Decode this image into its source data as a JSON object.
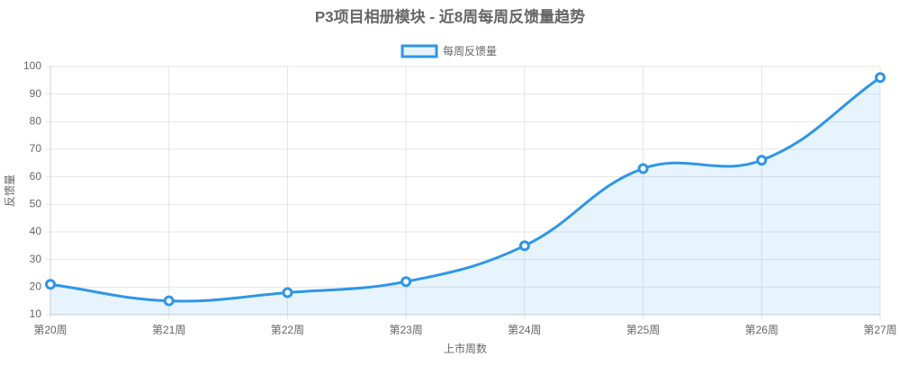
{
  "chart_data": {
    "type": "line",
    "title": "P3项目相册模块 - 近8周每周反馈量趋势",
    "x_label": "上市周数",
    "y_label": "反馈量",
    "categories": [
      "第20周",
      "第21周",
      "第22周",
      "第23周",
      "第24周",
      "第25周",
      "第26周",
      "第27周"
    ],
    "series": [
      {
        "name": "每周反馈量",
        "color": "#2f96e6",
        "values": [
          21,
          15,
          18,
          22,
          35,
          63,
          66,
          96
        ]
      }
    ],
    "ylim": [
      10,
      100
    ],
    "yticks": [
      10,
      20,
      30,
      40,
      50,
      60,
      70,
      80,
      90,
      100
    ],
    "grid": true,
    "legend": "top",
    "fill": true
  }
}
